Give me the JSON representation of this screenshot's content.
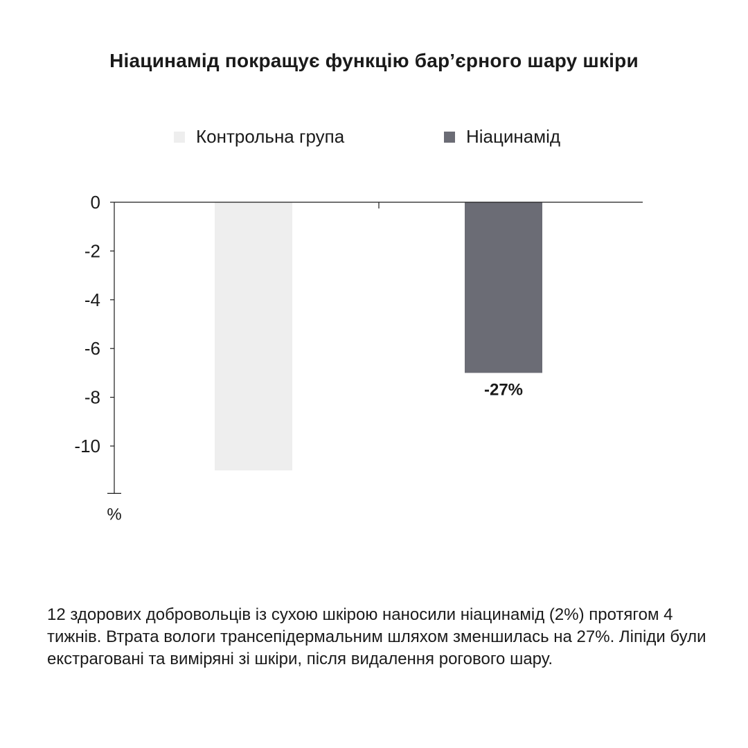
{
  "title": "Ніацинамід покращує функцію бар’єрного шару шкіри",
  "legend": [
    {
      "label": "Контрольна група",
      "color": "#eeeeee"
    },
    {
      "label": "Ніацинамід",
      "color": "#6b6c75"
    }
  ],
  "chart_data": {
    "type": "bar",
    "series": [
      {
        "name": "Контрольна група",
        "value": -11,
        "color": "#eeeeee",
        "label": ""
      },
      {
        "name": "Ніацинамід",
        "value": -7,
        "color": "#6b6c75",
        "label": "-27%"
      }
    ],
    "yunit": "%",
    "ylim": [
      -12,
      0
    ],
    "yticks": [
      0,
      -2,
      -4,
      -6,
      -8,
      -10
    ],
    "yticklabels": [
      "0",
      "-2",
      "-4",
      "-6",
      "-8",
      "-10"
    ]
  },
  "note": "12 здорових добровольців із сухою шкірою наносили ніацинамід (2%) протягом 4 тижнів. Втрата вологи трансепідермальним шляхом зменшилась на 27%. Ліпіди були екстраговані та виміряні зі шкіри, після видалення рогового шару."
}
